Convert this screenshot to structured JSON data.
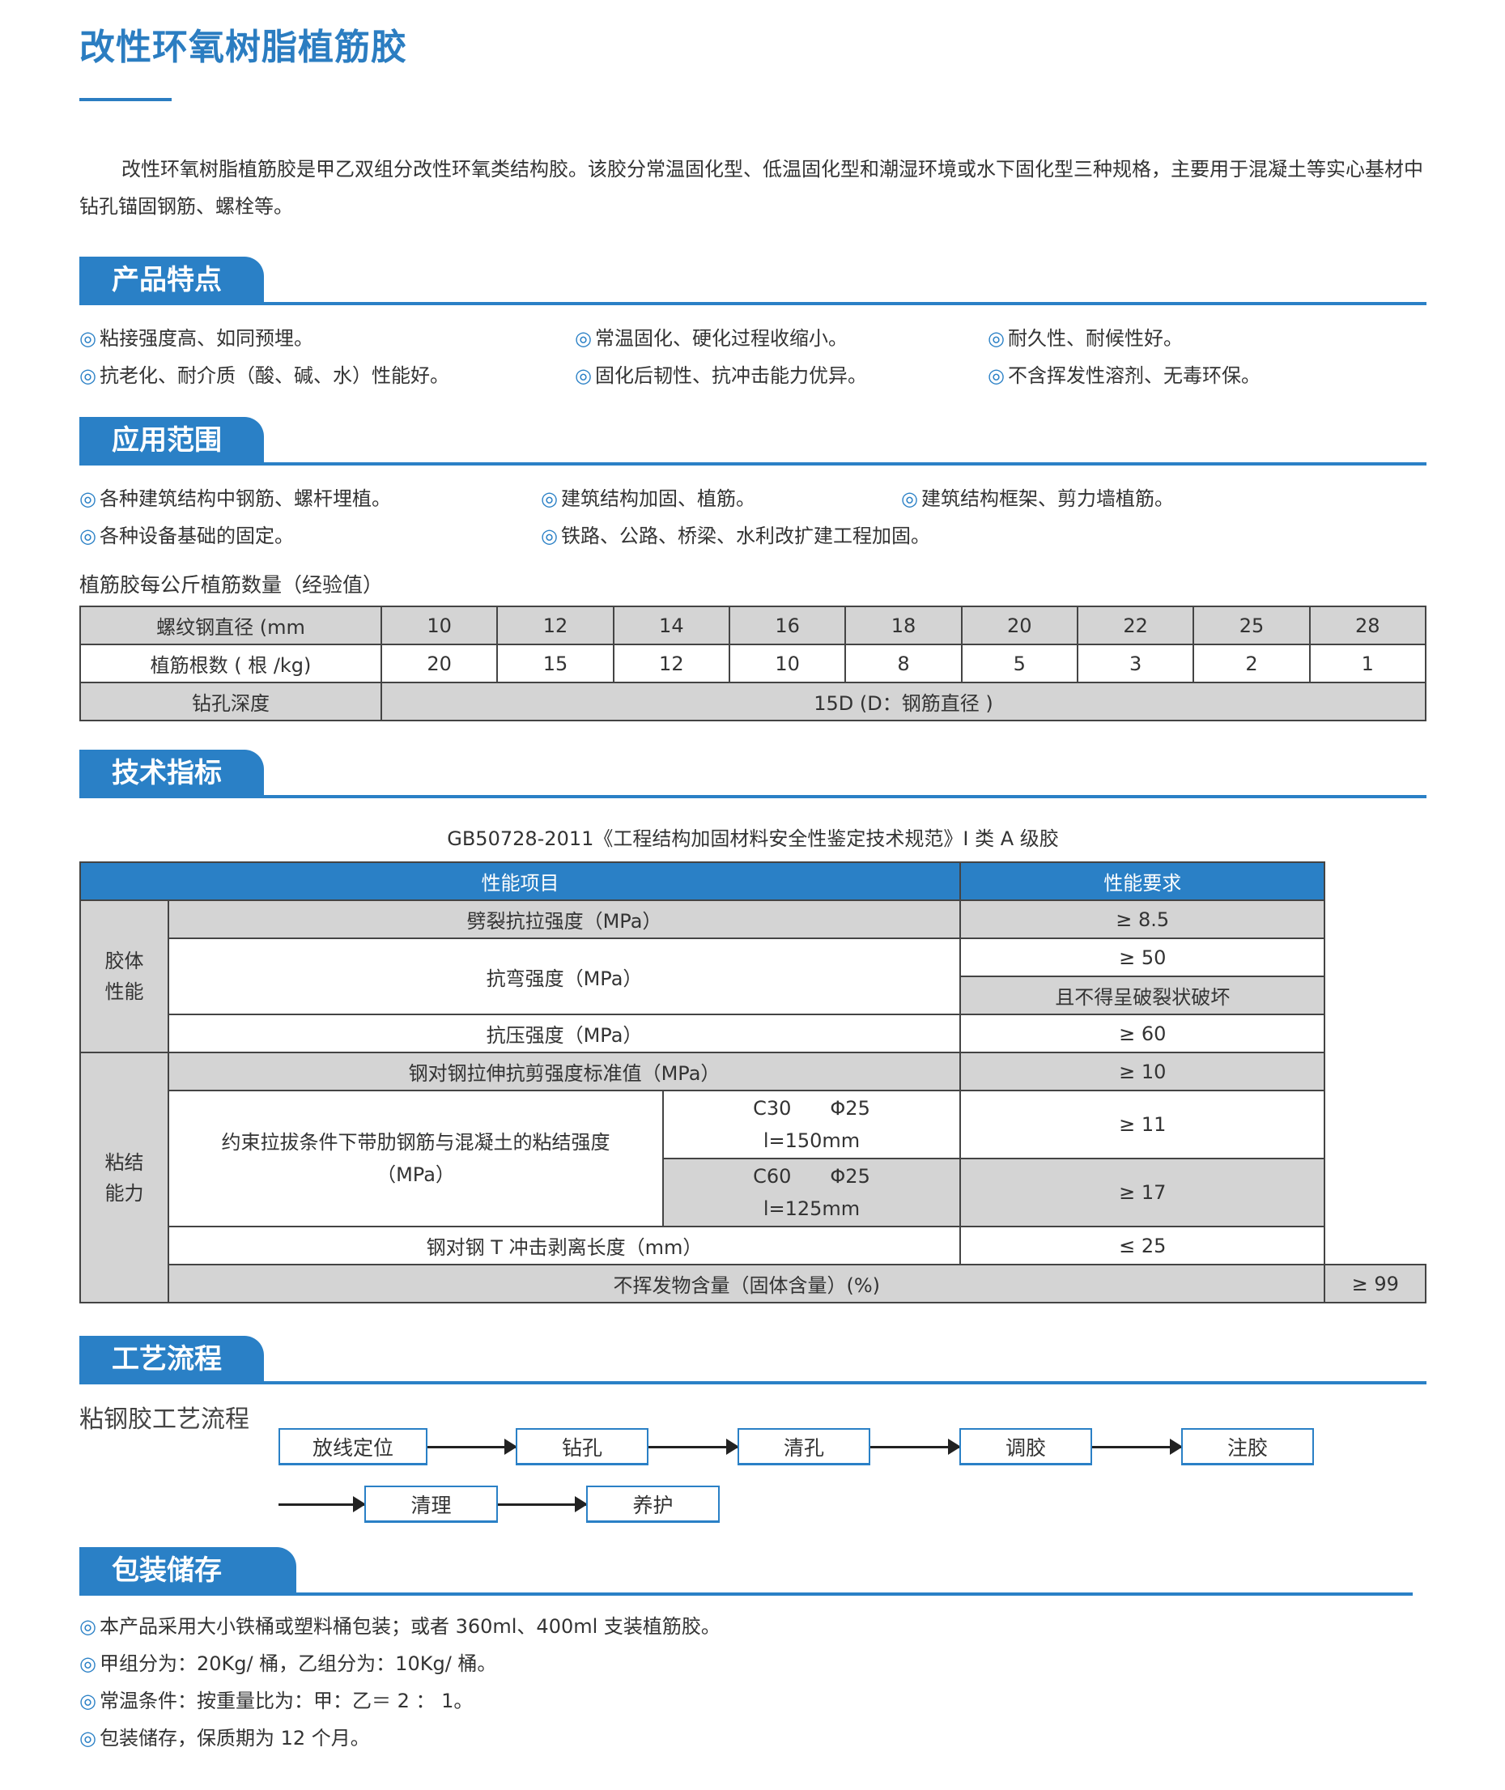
{
  "title": "改性环氧树脂植筋胶",
  "intro": "改性环氧树脂植筋胶是甲乙双组分改性环氧类结构胶。该胶分常温固化型、低温固化型和潮湿环境或水下固化型三种规格，主要用于混凝土等实心基材中钻孔锚固钢筋、螺栓等。",
  "bullet_mark": "◎",
  "features": {
    "heading": "产品特点",
    "items": [
      "粘接强度高、如同预埋。",
      "常温固化、硬化过程收缩小。",
      "耐久性、耐候性好。",
      "抗老化、耐介质（酸、碱、水）性能好。",
      "固化后韧性、抗冲击能力优异。",
      "不含挥发性溶剂、无毒环保。"
    ]
  },
  "applications": {
    "heading": "应用范围",
    "items": [
      "各种建筑结构中钢筋、螺杆埋植。",
      "建筑结构加固、植筋。",
      "建筑结构框架、剪力墙植筋。",
      "各种设备基础的固定。",
      "铁路、公路、桥梁、水利改扩建工程加固。"
    ]
  },
  "rebar_table": {
    "caption": "植筋胶每公斤植筋数量（经验值）",
    "row1_label": "螺纹钢直径 (mm",
    "diameters": [
      "10",
      "12",
      "14",
      "16",
      "18",
      "20",
      "22",
      "25",
      "28"
    ],
    "row2_label": "植筋根数 ( 根 /kg)",
    "counts": [
      "20",
      "15",
      "12",
      "10",
      "8",
      "5",
      "3",
      "2",
      "1"
    ],
    "row3_label": "钻孔深度",
    "depth": "15D (D：钢筋直径 )"
  },
  "specs": {
    "heading": "技术指标",
    "standard": "GB50728-2011《工程结构加固材料安全性鉴定技术规范》I 类 A 级胶",
    "col_item": "性能项目",
    "col_req": "性能要求",
    "group1": "胶体\n性能",
    "group2": "粘结\n能力",
    "rows": {
      "split": "劈裂抗拉强度（MPa）",
      "split_v": "≥ 8.5",
      "bend": "抗弯强度（MPa）",
      "bend_v": "≥ 50",
      "bend_v2": "且不得呈破裂状破坏",
      "comp": "抗压强度（MPa）",
      "comp_v": "≥ 60",
      "shear": "钢对钢拉伸抗剪强度标准值（MPa）",
      "shear_v": "≥ 10",
      "bond": "约束拉拔条件下带肋钢筋与混凝土的粘结强度（MPa）",
      "c30": "C30　　Φ25",
      "c30_l": "l=150mm",
      "c30_v": "≥ 11",
      "c60": "C60　　Φ25",
      "c60_l": "l=125mm",
      "c60_v": "≥ 17",
      "peel": "钢对钢 T 冲击剥离长度（mm）",
      "peel_v": "≤ 25",
      "solid": "不挥发物含量（固体含量）(%)",
      "solid_v": "≥ 99"
    }
  },
  "process": {
    "heading": "工艺流程",
    "subtitle": "粘钢胶工艺流程",
    "steps": [
      "放线定位",
      "钻孔",
      "清孔",
      "调胶",
      "注胶",
      "清理",
      "养护"
    ]
  },
  "packaging": {
    "heading": "包装储存",
    "items": [
      "本产品采用大小铁桶或塑料桶包装；或者 360ml、400ml 支装植筋胶。",
      "甲组分为：20Kg/ 桶，乙组分为：10Kg/ 桶。",
      "常温条件：按重量比为：甲：乙＝ 2 ： 1。",
      "包装储存，保质期为 12 个月。"
    ]
  },
  "colors": {
    "accent": "#2a80c6",
    "grey_cell": "#d4d4d4"
  }
}
